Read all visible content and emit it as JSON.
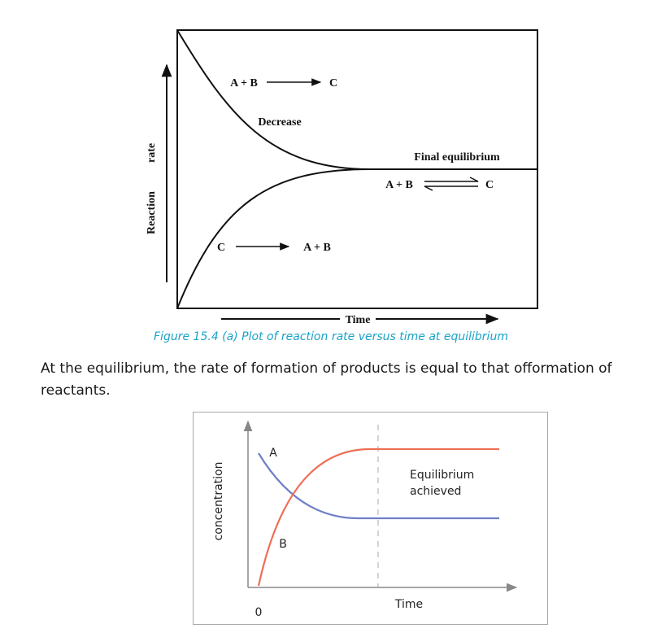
{
  "figure1": {
    "y_label": [
      "Reaction",
      "rate"
    ],
    "x_label": "Time",
    "forward": {
      "left": "A + B",
      "right": "C"
    },
    "decrease": "Decrease",
    "final": "Final equilibrium",
    "equilibrium": {
      "left": "A + B",
      "right": "C"
    },
    "reverse": {
      "left": "C",
      "right": "A + B"
    },
    "caption": "Figure 15.4 (a) Plot of reaction rate versus time at equilibrium"
  },
  "paragraph": [
    "At the equilibrium, the rate of formation of products is equal to that offormation of",
    "reactants."
  ],
  "figure2": {
    "y_label": "concentration",
    "x_label": "Time",
    "origin": "0",
    "curve_a": "A",
    "curve_b": "B",
    "note": [
      "Equilibrium",
      "achieved"
    ]
  }
}
